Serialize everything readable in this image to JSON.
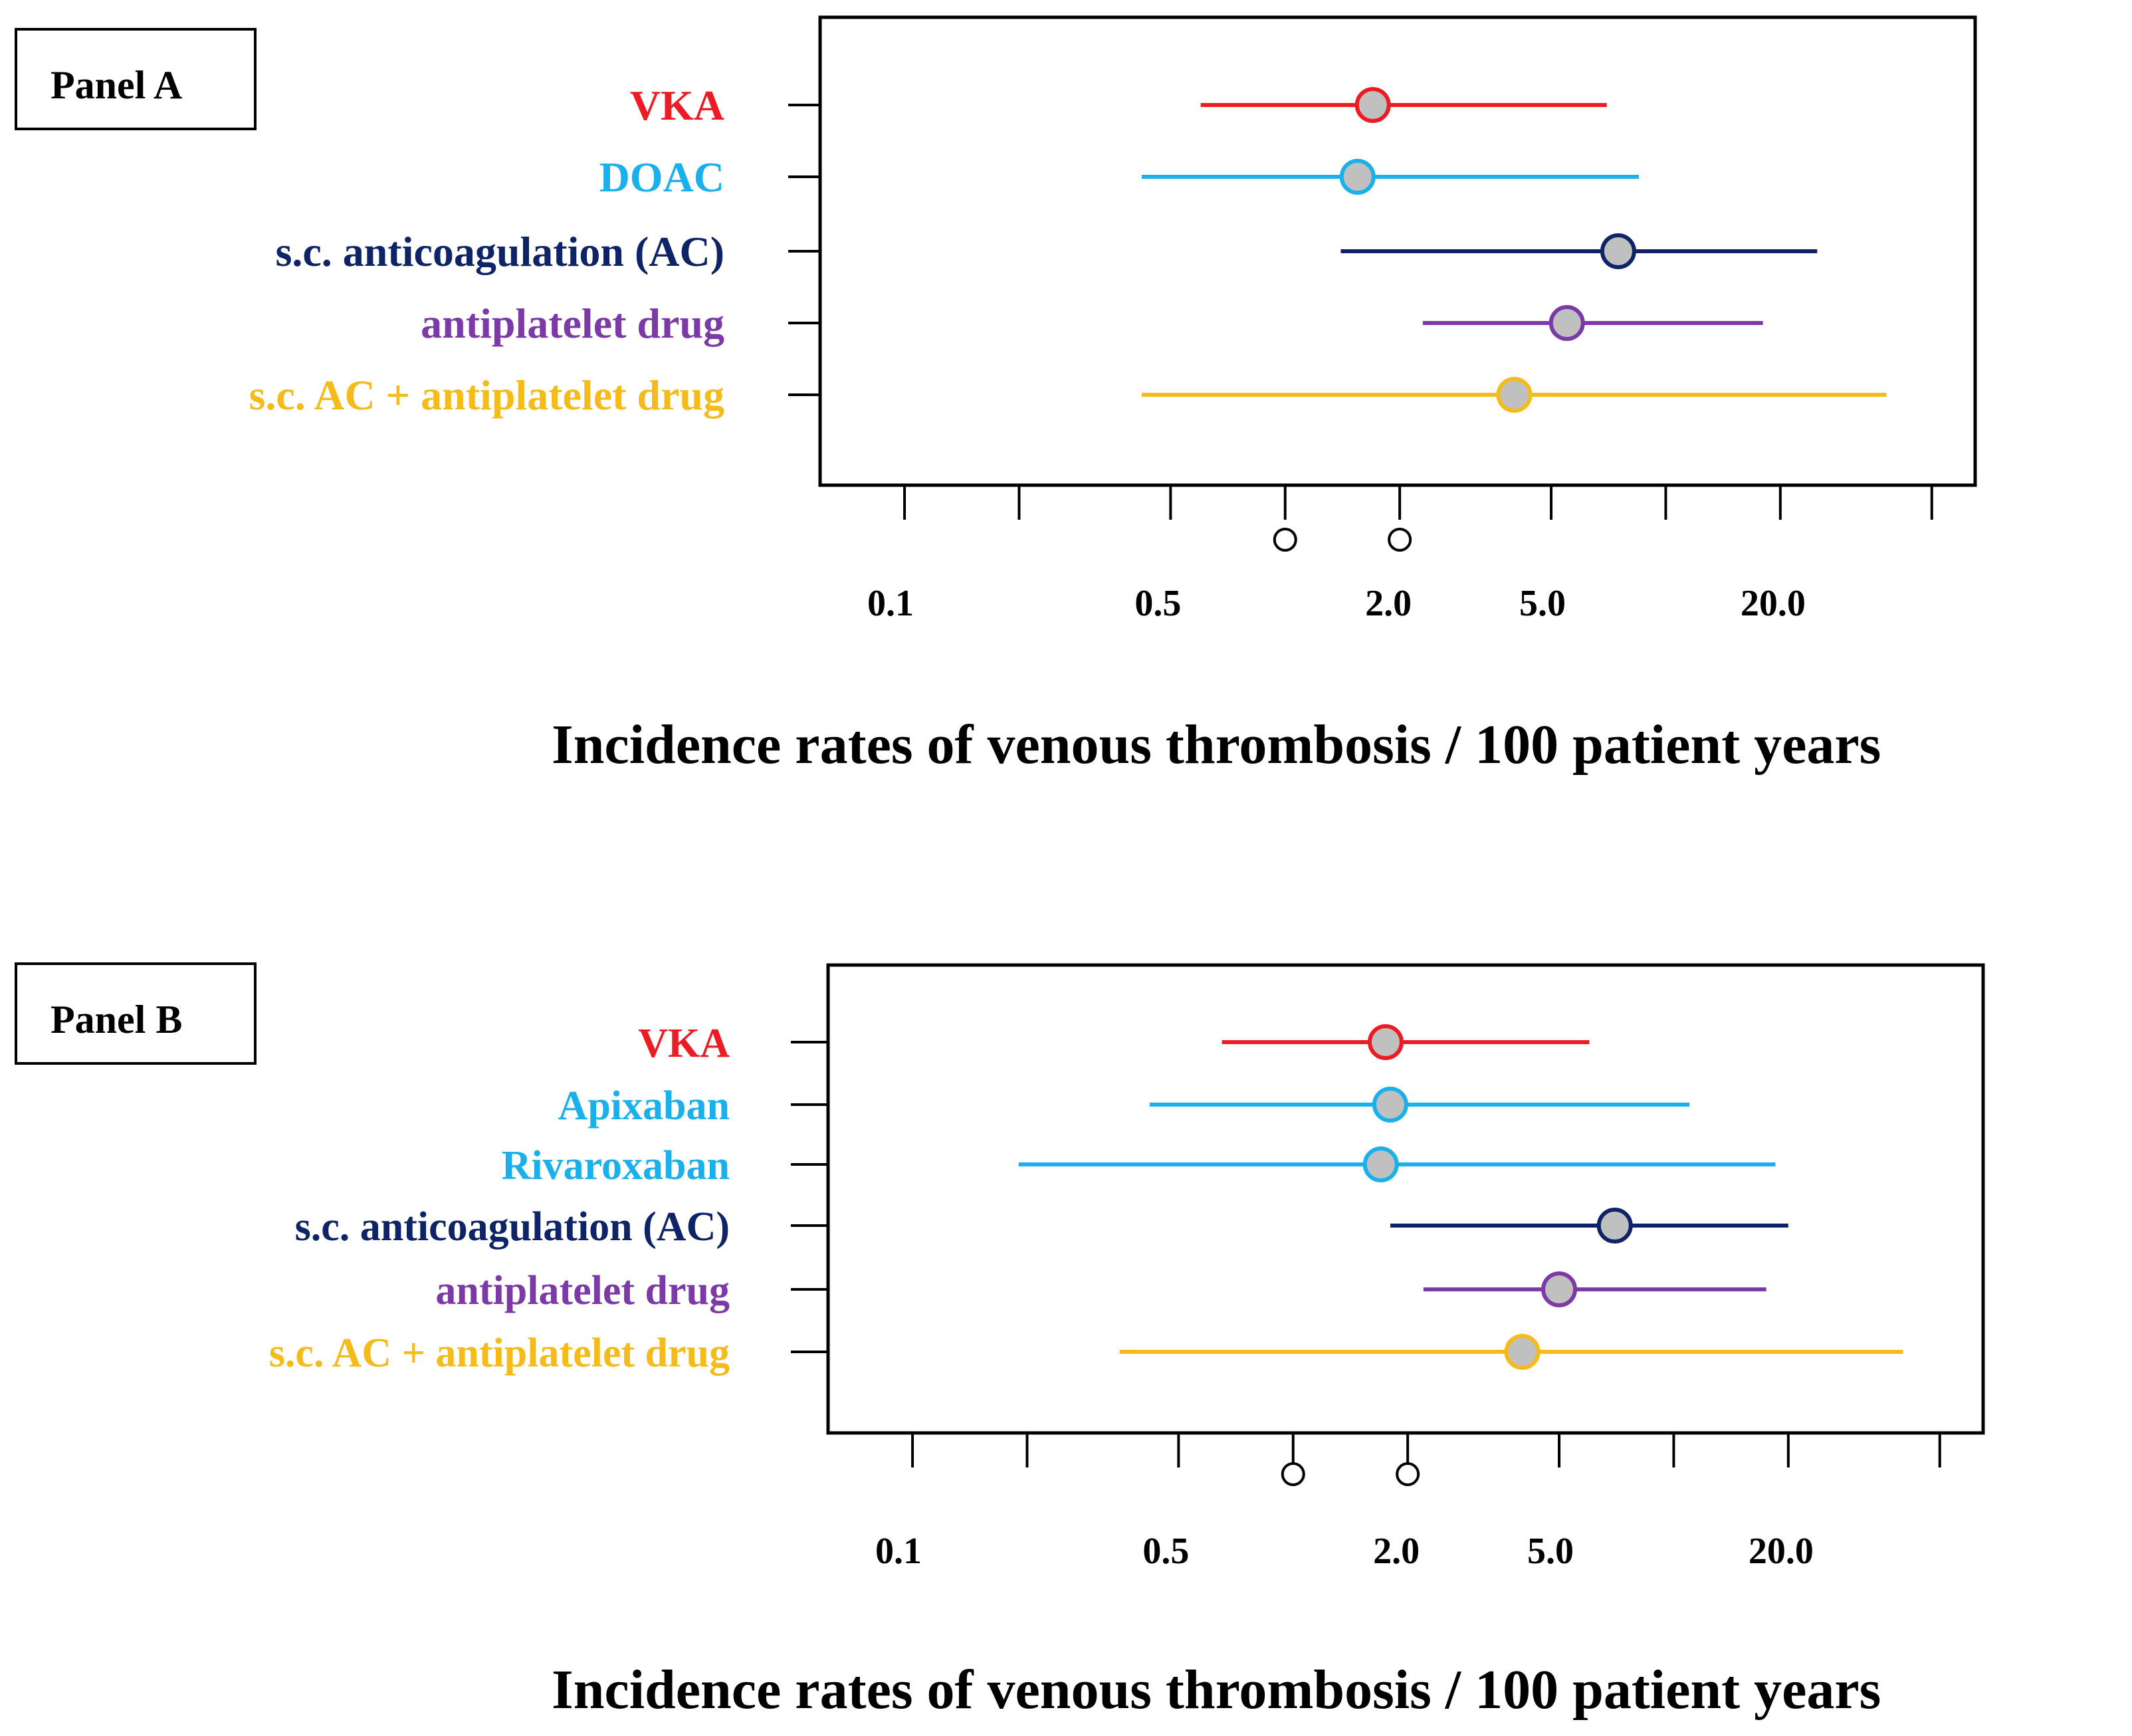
{
  "chart_data": [
    {
      "type": "forest",
      "panel_label": "Panel A",
      "xlabel": "Incidence rates of venous thrombosis / 100 patient years",
      "xscale": "log",
      "xlim": [
        0.06,
        65
      ],
      "major_ticks": [
        0.1,
        0.2,
        0.5,
        1.0,
        2.0,
        5.0,
        10.0,
        20.0,
        50.0
      ],
      "tick_labels": [
        {
          "value": 0.1,
          "label": "0.1"
        },
        {
          "value": 0.5,
          "label": "0.5"
        },
        {
          "value": 2.0,
          "label": "2.0"
        },
        {
          "value": 5.0,
          "label": "5.0"
        },
        {
          "value": 20.0,
          "label": "20.0"
        }
      ],
      "hollow_tick_markers": [
        1.0,
        2.0
      ],
      "rows": [
        {
          "label": "VKA",
          "color": "#ed1c24",
          "estimate": 1.7,
          "lower": 0.6,
          "upper": 7.0
        },
        {
          "label": "DOAC",
          "color": "#1ab0ec",
          "estimate": 1.55,
          "lower": 0.42,
          "upper": 8.5
        },
        {
          "label": "s.c. anticoagulation (AC)",
          "color": "#0f2466",
          "estimate": 7.5,
          "lower": 1.4,
          "upper": 25.0
        },
        {
          "label": "antiplatelet drug",
          "color": "#7b3aa6",
          "estimate": 5.5,
          "lower": 2.3,
          "upper": 18.0
        },
        {
          "label": "s.c. AC + antiplatelet drug",
          "color": "#f5bb1a",
          "estimate": 4.0,
          "lower": 0.42,
          "upper": 38.0
        }
      ]
    },
    {
      "type": "forest",
      "panel_label": "Panel B",
      "xlabel": "Incidence rates of venous thrombosis / 100 patient years",
      "xscale": "log",
      "xlim": [
        0.06,
        65
      ],
      "major_ticks": [
        0.1,
        0.2,
        0.5,
        1.0,
        2.0,
        5.0,
        10.0,
        20.0,
        50.0
      ],
      "tick_labels": [
        {
          "value": 0.1,
          "label": "0.1"
        },
        {
          "value": 0.5,
          "label": "0.5"
        },
        {
          "value": 2.0,
          "label": "2.0"
        },
        {
          "value": 5.0,
          "label": "5.0"
        },
        {
          "value": 20.0,
          "label": "20.0"
        }
      ],
      "hollow_tick_markers": [
        1.0,
        2.0
      ],
      "rows": [
        {
          "label": "VKA",
          "color": "#ed1c24",
          "estimate": 1.75,
          "lower": 0.65,
          "upper": 6.0
        },
        {
          "label": "Apixaban",
          "color": "#1ab0ec",
          "estimate": 1.8,
          "lower": 0.42,
          "upper": 11.0
        },
        {
          "label": "Rivaroxaban",
          "color": "#1ab0ec",
          "estimate": 1.7,
          "lower": 0.19,
          "upper": 18.5
        },
        {
          "label": "s.c. anticoagulation (AC)",
          "color": "#0f2466",
          "estimate": 7.0,
          "lower": 1.8,
          "upper": 20.0
        },
        {
          "label": "antiplatelet drug",
          "color": "#7b3aa6",
          "estimate": 5.0,
          "lower": 2.2,
          "upper": 17.5
        },
        {
          "label": "s.c. AC + antiplatelet drug",
          "color": "#f5bb1a",
          "estimate": 4.0,
          "lower": 0.35,
          "upper": 40.0
        }
      ]
    }
  ]
}
